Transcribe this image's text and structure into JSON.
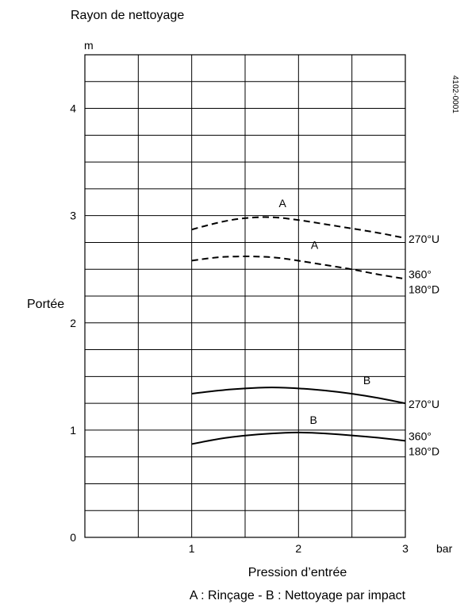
{
  "chart_data": {
    "type": "line",
    "title": "Rayon de nettoyage",
    "xlabel": "Pression d’entrée",
    "ylabel": "Portée",
    "x_unit": "bar",
    "y_unit": "m",
    "xlim": [
      0,
      3
    ],
    "ylim": [
      0,
      4.5
    ],
    "x_ticks": [
      1,
      2,
      3
    ],
    "y_ticks": [
      0,
      1,
      2,
      3,
      4
    ],
    "grid": true,
    "figure_code": "4102-0001",
    "caption": "A : Rinçage - B : Nettoyage par impact",
    "series": [
      {
        "curve_letter": "A",
        "end_label": [
          "270°U"
        ],
        "style": "dashed",
        "points": [
          [
            1.0,
            2.87
          ],
          [
            1.25,
            2.94
          ],
          [
            1.5,
            2.98
          ],
          [
            1.75,
            2.99
          ],
          [
            2.0,
            2.96
          ],
          [
            2.25,
            2.92
          ],
          [
            2.5,
            2.88
          ],
          [
            2.75,
            2.84
          ],
          [
            3.0,
            2.79
          ]
        ]
      },
      {
        "curve_letter": "A",
        "end_label": [
          "360°",
          "180°D"
        ],
        "style": "dashed",
        "points": [
          [
            1.0,
            2.58
          ],
          [
            1.2,
            2.61
          ],
          [
            1.4,
            2.62
          ],
          [
            1.6,
            2.62
          ],
          [
            1.8,
            2.61
          ],
          [
            2.0,
            2.58
          ],
          [
            2.25,
            2.54
          ],
          [
            2.5,
            2.5
          ],
          [
            2.75,
            2.45
          ],
          [
            3.0,
            2.41
          ]
        ]
      },
      {
        "curve_letter": "B",
        "end_label": [
          "270°U"
        ],
        "style": "solid",
        "points": [
          [
            1.0,
            1.34
          ],
          [
            1.25,
            1.37
          ],
          [
            1.5,
            1.39
          ],
          [
            1.75,
            1.4
          ],
          [
            2.0,
            1.39
          ],
          [
            2.25,
            1.37
          ],
          [
            2.5,
            1.34
          ],
          [
            2.75,
            1.3
          ],
          [
            3.0,
            1.25
          ]
        ]
      },
      {
        "curve_letter": "B",
        "end_label": [
          "360°",
          "180°D"
        ],
        "style": "solid",
        "points": [
          [
            1.0,
            0.87
          ],
          [
            1.25,
            0.92
          ],
          [
            1.5,
            0.95
          ],
          [
            1.75,
            0.97
          ],
          [
            2.0,
            0.98
          ],
          [
            2.25,
            0.97
          ],
          [
            2.5,
            0.95
          ],
          [
            2.75,
            0.93
          ],
          [
            3.0,
            0.9
          ]
        ]
      }
    ],
    "curve_letter_positions": [
      {
        "text": "A",
        "x": 1.85,
        "y": 3.08
      },
      {
        "text": "A",
        "x": 2.15,
        "y": 2.69
      },
      {
        "text": "B",
        "x": 2.64,
        "y": 1.43
      },
      {
        "text": "B",
        "x": 2.14,
        "y": 1.06
      }
    ]
  }
}
